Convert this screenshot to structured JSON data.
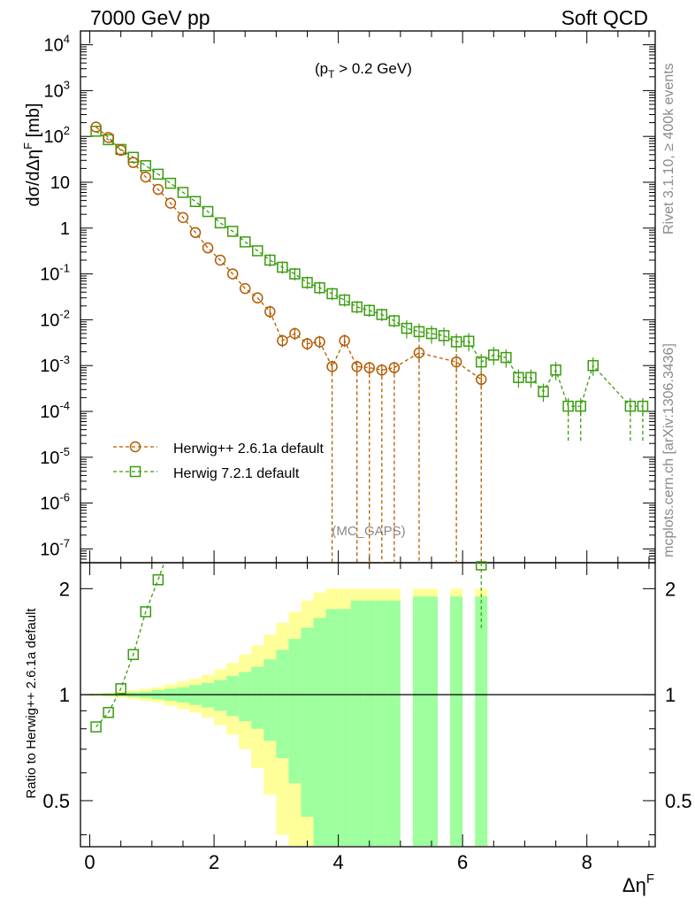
{
  "header": {
    "left": "7000 GeV pp",
    "right": "Soft QCD",
    "cut_main": "(p",
    "cut_sub": "T",
    "cut_rest": " > 0.2 GeV)",
    "watermark": "(MC_GAPS)",
    "side_top": "Rivet 3.1.10, ≥ 400k events",
    "side_bottom": "mcplots.cern.ch [arXiv:1306.3436]"
  },
  "colors": {
    "herwigpp": "#b35b00",
    "herwig7": "#3a9c0f",
    "band_inner": "#9dff9d",
    "band_outer": "#ffff99"
  },
  "chart_data": [
    {
      "type": "line",
      "panel": "main",
      "ylabel": "dσ/dΔη^F [mb]",
      "yscale": "log",
      "ylim": [
        5e-08,
        20000.0
      ],
      "xlim": [
        -0.15,
        9.1
      ],
      "y_ticklabels": [
        "10^4",
        "10^3",
        "10^2",
        "10",
        "1",
        "10^-1",
        "10^-2",
        "10^-3",
        "10^-4",
        "10^-5",
        "10^-6",
        "10^-7"
      ],
      "legend_position": "middle-left",
      "series": [
        {
          "name": "Herwig++ 2.6.1a default",
          "marker": "circle",
          "x": [
            0.1,
            0.3,
            0.5,
            0.7,
            0.9,
            1.1,
            1.3,
            1.5,
            1.7,
            1.9,
            2.1,
            2.3,
            2.5,
            2.7,
            2.9,
            3.1,
            3.3,
            3.5,
            3.7,
            3.9,
            4.1,
            4.3,
            4.5,
            4.7,
            4.9,
            5.3,
            5.9,
            6.3
          ],
          "y": [
            160,
            95,
            50,
            27,
            13,
            7,
            3.5,
            1.7,
            0.8,
            0.37,
            0.2,
            0.1,
            0.048,
            0.03,
            0.015,
            0.0035,
            0.005,
            0.003,
            0.0033,
            0.00095,
            0.0035,
            0.00095,
            0.0009,
            0.0008,
            0.0009,
            0.0019,
            0.0012,
            0.0005
          ],
          "drops_to_zero_after": [
            3.9,
            4.3,
            4.5,
            4.7,
            4.9,
            5.3,
            5.9,
            6.3
          ]
        },
        {
          "name": "Herwig 7.2.1 default",
          "marker": "square",
          "x": [
            0.1,
            0.3,
            0.5,
            0.7,
            0.9,
            1.1,
            1.3,
            1.5,
            1.7,
            1.9,
            2.1,
            2.3,
            2.5,
            2.7,
            2.9,
            3.1,
            3.3,
            3.5,
            3.7,
            3.9,
            4.1,
            4.3,
            4.5,
            4.7,
            4.9,
            5.1,
            5.3,
            5.5,
            5.7,
            5.9,
            6.1,
            6.3,
            6.5,
            6.7,
            6.9,
            7.1,
            7.3,
            7.5,
            7.7,
            7.9,
            8.1,
            8.7,
            8.9
          ],
          "y": [
            130,
            85,
            52,
            35,
            23,
            15,
            9.5,
            6,
            3.8,
            2.3,
            1.3,
            0.85,
            0.5,
            0.32,
            0.2,
            0.14,
            0.1,
            0.065,
            0.05,
            0.037,
            0.027,
            0.019,
            0.016,
            0.013,
            0.0095,
            0.0065,
            0.0055,
            0.005,
            0.0045,
            0.0033,
            0.0034,
            0.0012,
            0.0017,
            0.0015,
            0.00055,
            0.00055,
            0.00027,
            0.0008,
            0.00013,
            0.00013,
            0.001,
            0.00013,
            0.00013
          ]
        }
      ]
    },
    {
      "type": "line",
      "panel": "ratio",
      "ylabel": "Ratio to Herwig++ 2.6.1a default",
      "xlabel": "Δη^F",
      "ylim": [
        0.37,
        2.37
      ],
      "xlim": [
        -0.15,
        9.1
      ],
      "x_ticklabels": [
        "0",
        "2",
        "4",
        "6",
        "8"
      ],
      "y_ticklabels": [
        "0.5",
        "1",
        "2"
      ],
      "series": [
        {
          "name": "Herwig 7.2.1 default",
          "x": [
            0.1,
            0.3,
            0.5,
            0.7,
            0.9,
            1.1,
            6.3
          ],
          "y": [
            0.81,
            0.89,
            1.04,
            1.3,
            1.72,
            2.12,
            2.4
          ]
        }
      ],
      "uncertainty_band": {
        "x_edges": [
          0,
          0.2,
          0.4,
          0.6,
          0.8,
          1.0,
          1.2,
          1.4,
          1.6,
          1.8,
          2.0,
          2.2,
          2.4,
          2.6,
          2.8,
          3.0,
          3.2,
          3.4,
          3.6,
          3.8,
          4.0,
          4.2,
          4.4,
          4.6,
          4.8,
          5.0,
          5.2,
          5.4,
          5.6,
          5.8,
          6.0,
          6.2,
          6.4
        ],
        "inner": [
          0.005,
          0.008,
          0.01,
          0.015,
          0.02,
          0.03,
          0.04,
          0.05,
          0.065,
          0.08,
          0.1,
          0.13,
          0.16,
          0.2,
          0.26,
          0.34,
          0.44,
          0.55,
          0.65,
          0.75,
          0.75,
          0.85,
          0.85,
          0.85,
          0.85,
          0,
          0.9,
          0.9,
          0,
          0.9,
          0,
          0.9
        ],
        "outer": [
          0.008,
          0.012,
          0.02,
          0.03,
          0.04,
          0.05,
          0.07,
          0.09,
          0.11,
          0.14,
          0.18,
          0.23,
          0.3,
          0.38,
          0.48,
          0.6,
          0.72,
          0.85,
          0.95,
          1.0,
          1.0,
          1.0,
          1.0,
          1.0,
          1.0,
          0,
          1.0,
          1.0,
          0,
          1.0,
          0,
          1.0
        ]
      }
    }
  ]
}
